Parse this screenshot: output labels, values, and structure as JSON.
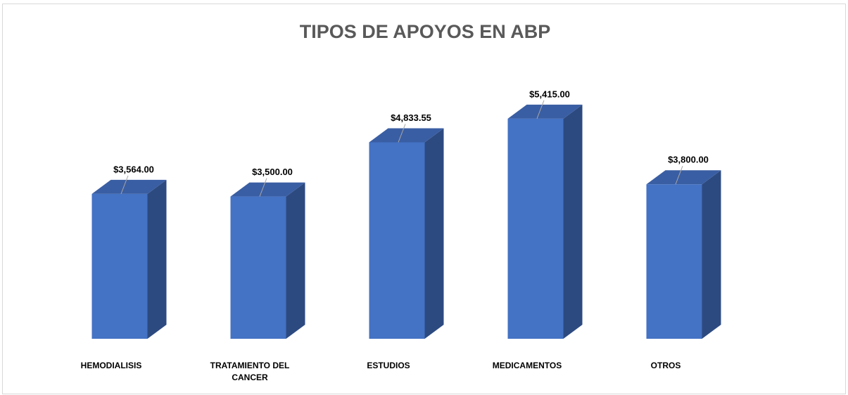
{
  "chart_data": {
    "type": "bar3d",
    "title": "TIPOS DE APOYOS EN ABP",
    "categories": [
      "HEMODIALISIS",
      "TRATAMIENTO DEL CANCER",
      "ESTUDIOS",
      "MEDICAMENTOS",
      "OTROS"
    ],
    "values": [
      3564,
      3500,
      4833.55,
      5415,
      3800
    ],
    "value_labels": [
      "$3,564.00",
      "$3,500.00",
      "$4,833.55",
      "$5,415.00",
      "$3,800.00"
    ],
    "color": "#4472c4",
    "ylim": [
      0,
      6000
    ]
  }
}
